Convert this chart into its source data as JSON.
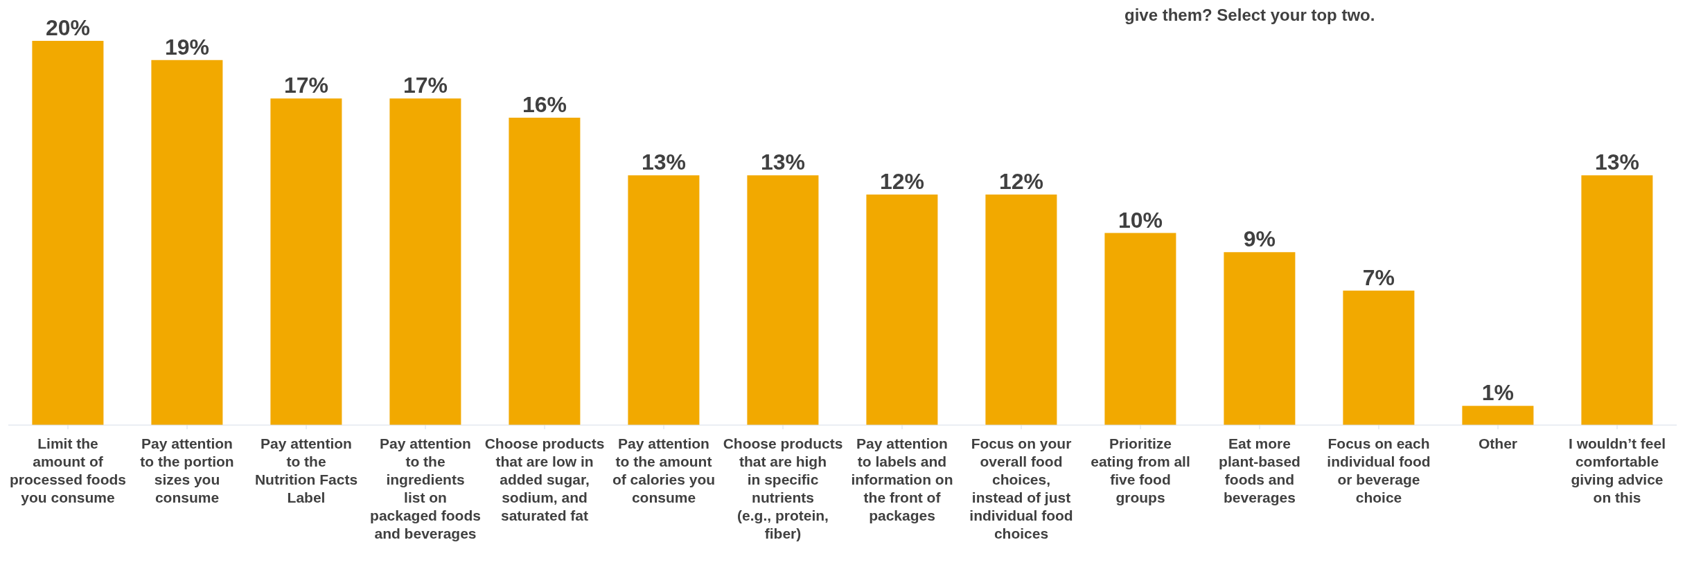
{
  "chart_data": {
    "type": "bar",
    "title": "give them? Select your top two.",
    "categories": [
      "Limit the amount of processed foods you consume",
      "Pay attention to the portion sizes you consume",
      "Pay attention to the Nutrition Facts Label",
      "Pay attention to the ingredients list on packaged foods and beverages",
      "Choose products that are low in added sugar, sodium, and saturated fat",
      "Pay attention to the amount of calories you consume",
      "Choose products that are high in specific nutrients (e.g., protein, fiber)",
      "Pay attention to labels and information on the front of packages",
      "Focus on your overall food choices, instead of just individual food choices",
      "Prioritize eating from all five food groups",
      "Eat more plant-based foods and beverages",
      "Focus on each individual food or beverage choice",
      "Other",
      "I wouldn’t feel comfortable giving advice on this"
    ],
    "values": [
      20,
      19,
      17,
      17,
      16,
      13,
      13,
      12,
      12,
      10,
      9,
      7,
      1,
      13
    ],
    "value_labels": [
      "20%",
      "19%",
      "17%",
      "17%",
      "16%",
      "13%",
      "13%",
      "12%",
      "12%",
      "10%",
      "9%",
      "7%",
      "1%",
      "13%"
    ],
    "color": "#f2a900",
    "grid": false,
    "legend": false
  }
}
